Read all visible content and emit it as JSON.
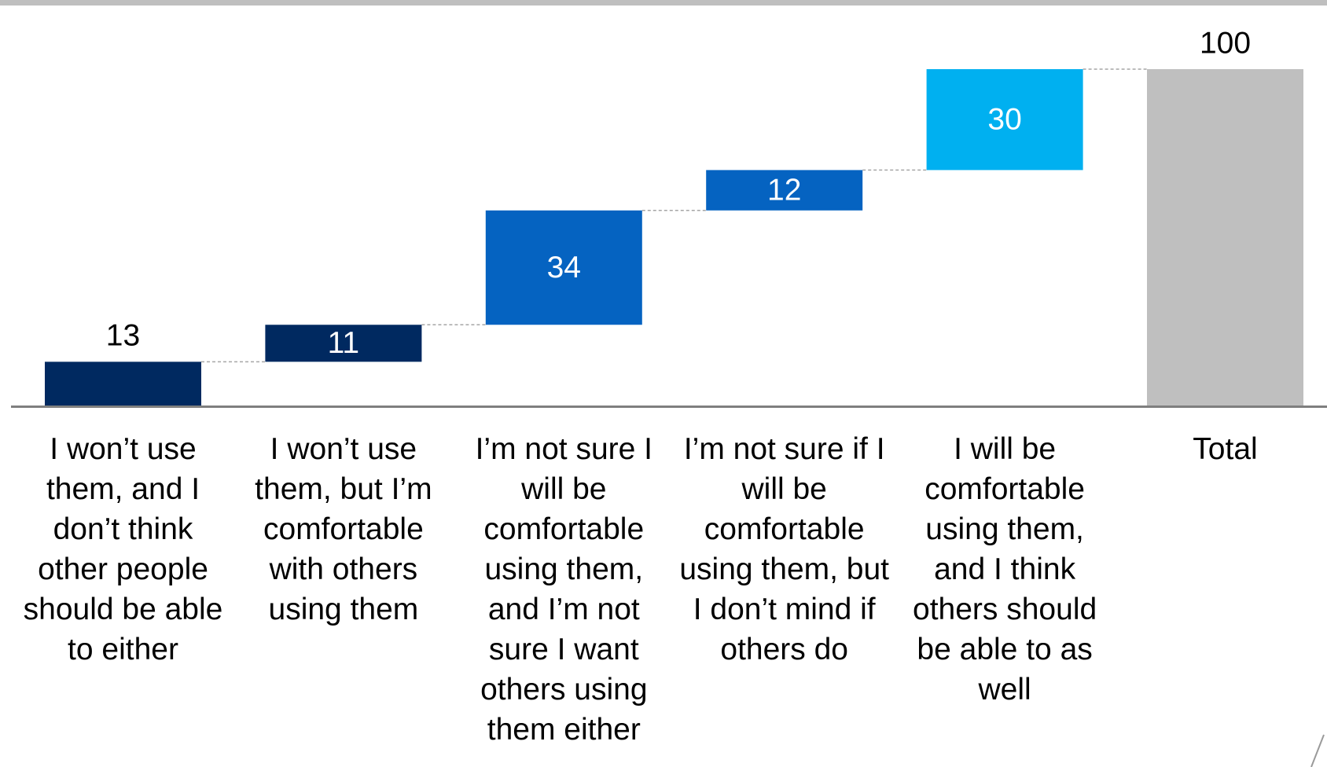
{
  "chart_data": {
    "type": "waterfall",
    "categories": [
      "I won’t use them, and I don’t think other people should be able to either",
      "I won’t use them, but I’m comfortable with others using them",
      "I’m not sure I will be comfortable using them, and I’m not sure I want others using them either",
      "I’m not sure if I will be comfortable using them, but I don’t mind if others do",
      "I will be comfortable using them, and I think others should be able to as well",
      "Total"
    ],
    "values": [
      13,
      11,
      34,
      12,
      30,
      100
    ],
    "colors": [
      "#002960",
      "#002960",
      "#0563c1",
      "#0563c1",
      "#00b0f0",
      "#bfbfbf"
    ],
    "total_last": true,
    "ylim": [
      0,
      100
    ]
  }
}
